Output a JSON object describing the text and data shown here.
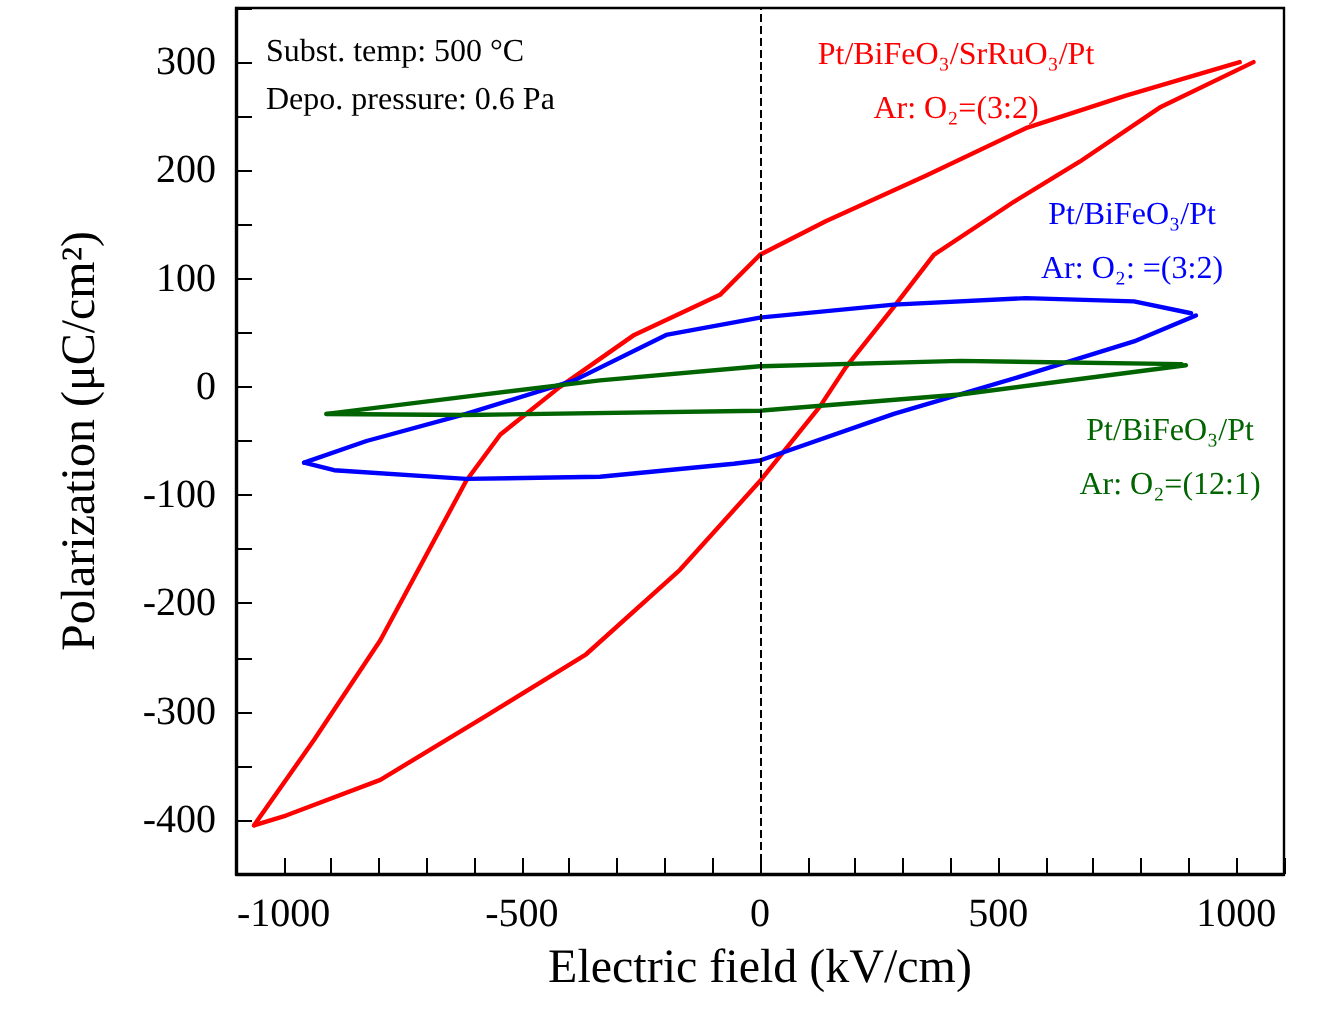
{
  "chart_data": {
    "type": "line",
    "xlabel": "Electric field (kV/cm)",
    "ylabel": "Polarization (μC/cm²)",
    "annotations": [
      "Subst. temp: 500 °C",
      "Depo. pressure: 0.6 Pa"
    ],
    "xlim": [
      -1100,
      1100
    ],
    "ylim": [
      -450,
      350
    ],
    "xticks": [
      {
        "value": -1100,
        "label": null
      },
      {
        "value": -1000,
        "label": "-1000"
      },
      {
        "value": -900,
        "label": null
      },
      {
        "value": -800,
        "label": null
      },
      {
        "value": -700,
        "label": null
      },
      {
        "value": -600,
        "label": null
      },
      {
        "value": -500,
        "label": "-500"
      },
      {
        "value": -400,
        "label": null
      },
      {
        "value": -300,
        "label": null
      },
      {
        "value": -200,
        "label": null
      },
      {
        "value": -100,
        "label": null
      },
      0,
      {
        "value": 100,
        "label": null
      },
      {
        "value": 200,
        "label": null
      },
      {
        "value": 300,
        "label": null
      },
      {
        "value": 400,
        "label": null
      },
      500,
      {
        "value": 600,
        "label": null
      },
      {
        "value": 700,
        "label": null
      },
      {
        "value": 800,
        "label": null
      },
      {
        "value": 900,
        "label": null
      },
      1000,
      {
        "value": 1100,
        "label": null
      }
    ],
    "yticks": [
      {
        "value": -450,
        "label": null
      },
      {
        "value": -400,
        "label": "-400"
      },
      {
        "value": -350,
        "label": null
      },
      {
        "value": -300,
        "label": "-300"
      },
      {
        "value": -250,
        "label": null
      },
      {
        "value": -200,
        "label": "-200"
      },
      {
        "value": -150,
        "label": null
      },
      {
        "value": -100,
        "label": "-100"
      },
      {
        "value": -50,
        "label": null
      },
      0,
      {
        "value": 50,
        "label": null
      },
      100,
      {
        "value": 150,
        "label": null
      },
      200,
      {
        "value": 250,
        "label": null
      },
      300,
      {
        "value": 350,
        "label": null
      }
    ],
    "grid": false,
    "legend": false,
    "marker": "none",
    "line_style": "solid",
    "ref_lines": [
      {
        "axis": "x",
        "value": 0,
        "color": "#000000",
        "line_style": "dashed"
      }
    ],
    "series": [
      {
        "name": "Pt/BiFeO₃/SrRuO₃/Pt\nAr: O₂=(3:2)",
        "color": "#ff0000",
        "x": [
          -1062,
          -936,
          -797,
          -617,
          -545,
          -420,
          -264,
          -84,
          0,
          138,
          348,
          558,
          768,
          1007
        ],
        "values": [
          -405,
          -326,
          -234,
          -87,
          -44,
          0,
          48,
          85,
          122,
          153,
          195,
          239,
          269,
          300
        ]
      },
      {
        "color": "#ff0000",
        "x": [
          -1062,
          -995,
          -797,
          -575,
          -365,
          -168,
          0,
          126,
          180,
          281,
          365,
          533,
          671,
          839,
          1036
        ],
        "values": [
          -405,
          -396,
          -363,
          -304,
          -247,
          -169,
          -87,
          -18,
          18,
          74,
          122,
          171,
          208,
          258,
          300
        ]
      },
      {
        "name": "Pt/BiFeO₃/Pt\nAr: O₂: =(3:2)",
        "color": "#0000ff",
        "x": [
          -957,
          -826,
          -617,
          -390,
          -197,
          0,
          281,
          558,
          785,
          905
        ],
        "values": [
          -70,
          -50,
          -25,
          6,
          48,
          64,
          76,
          82,
          79,
          68
        ]
      },
      {
        "color": "#0000ff",
        "x": [
          -957,
          -894,
          -617,
          -336,
          -55,
          0,
          281,
          558,
          785,
          915
        ],
        "values": [
          -70,
          -77,
          -85,
          -83,
          -71,
          -68,
          -25,
          11,
          42,
          66
        ]
      },
      {
        "name": "Pt/BiFeO₃/Pt\nAr: O₂=(12:1)",
        "color": "#006400",
        "x": [
          -910,
          -617,
          -336,
          0,
          420,
          885
        ],
        "values": [
          -25,
          -9,
          6,
          19,
          24,
          21
        ]
      },
      {
        "color": "#006400",
        "x": [
          -910,
          -617,
          0,
          420,
          894
        ],
        "values": [
          -25,
          -26,
          -22,
          -7,
          20
        ]
      }
    ]
  }
}
